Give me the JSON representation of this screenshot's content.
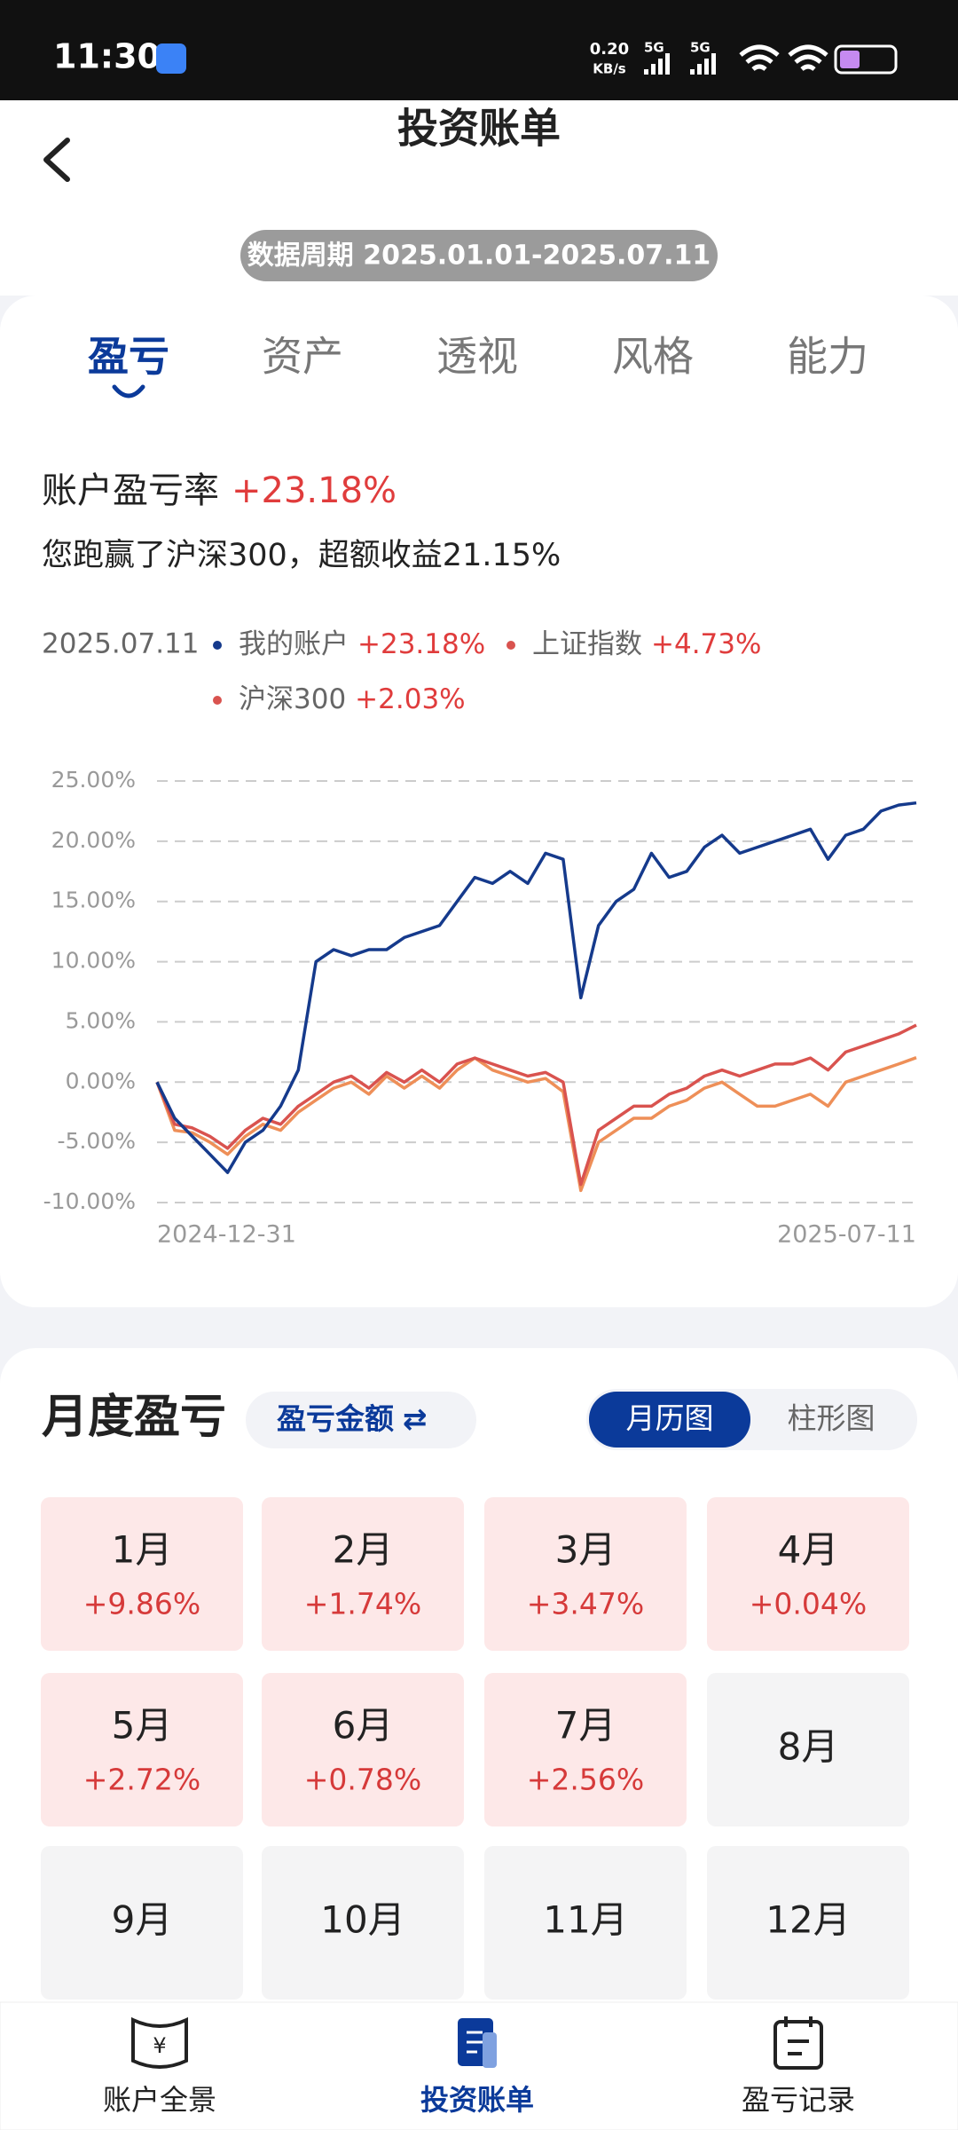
{
  "status_bar": {
    "time": "11:30",
    "net_speed": "0.20",
    "net_unit": "KB/s",
    "signal": [
      "5G",
      "5G"
    ]
  },
  "header": {
    "title": "投资账单",
    "period": "数据周期 2025.01.01-2025.07.11"
  },
  "tabs": {
    "items": [
      "盈亏",
      "资产",
      "透视",
      "风格",
      "能力"
    ],
    "active": 0
  },
  "summary": {
    "label": "账户盈亏率",
    "value": "+23.18%",
    "note": "您跑赢了沪深300，超额收益21.15%"
  },
  "chart_data": {
    "type": "line",
    "legend_date": "2025.07.11",
    "categories": [
      "2024-12-31",
      null,
      null,
      null,
      null,
      null,
      null,
      null,
      null,
      null,
      null,
      null,
      null,
      null,
      null,
      null,
      null,
      null,
      null,
      null,
      null,
      null,
      null,
      null,
      null,
      null,
      null,
      null,
      null,
      null,
      null,
      null,
      null,
      null,
      null,
      null,
      null,
      null,
      null,
      null,
      null,
      null,
      null,
      "2025-07-11"
    ],
    "series": [
      {
        "name": "我的账户",
        "color": "#153a8c",
        "legend_label": "+23.18%",
        "values": [
          0,
          -3,
          -4.5,
          -6,
          -7.5,
          -5,
          -4,
          -2,
          1,
          10,
          11,
          10.5,
          11,
          11,
          12,
          12.5,
          13,
          15,
          17,
          16.5,
          17.5,
          16.5,
          19,
          18.5,
          7,
          13,
          15,
          16,
          19,
          17,
          17.5,
          19.5,
          20.5,
          19,
          19.5,
          20,
          20.5,
          21,
          18.5,
          20.5,
          21,
          22.5,
          23,
          23.18
        ]
      },
      {
        "name": "上证指数",
        "color": "#d9534f",
        "legend_label": "+4.73%",
        "values": [
          0,
          -3.5,
          -3.8,
          -4.5,
          -5.5,
          -4,
          -3,
          -3.5,
          -2,
          -1,
          0,
          0.5,
          -0.5,
          0.8,
          0,
          1,
          0,
          1.5,
          2,
          1.5,
          1,
          0.5,
          0.8,
          0,
          -8.5,
          -4,
          -3,
          -2,
          -2,
          -1,
          -0.5,
          0.5,
          1,
          0.5,
          1,
          1.5,
          1.5,
          2,
          1,
          2.5,
          3,
          3.5,
          4,
          4.73
        ]
      },
      {
        "name": "沪深300",
        "color": "#ee8f58",
        "legend_label": "+2.03%",
        "values": [
          0,
          -4,
          -4.2,
          -5,
          -6,
          -4.5,
          -3.5,
          -4,
          -2.5,
          -1.5,
          -0.5,
          0,
          -1,
          0.5,
          -0.5,
          0.5,
          -0.5,
          1,
          2,
          1,
          0.5,
          0,
          0.3,
          -0.8,
          -9,
          -5,
          -4,
          -3,
          -3,
          -2,
          -1.5,
          -0.5,
          0,
          -1,
          -2,
          -2,
          -1.5,
          -1,
          -2,
          0,
          0.5,
          1,
          1.5,
          2.03
        ]
      }
    ],
    "ylim": [
      -10,
      25
    ],
    "yticks": [
      {
        "value": -10,
        "label": "-10.00%"
      },
      {
        "value": -5,
        "label": "-5.00%"
      },
      {
        "value": 0,
        "label": "0.00%"
      },
      {
        "value": 5,
        "label": "5.00%"
      },
      {
        "value": 10,
        "label": "10.00%"
      },
      {
        "value": 15,
        "label": "15.00%"
      },
      {
        "value": 20,
        "label": "20.00%"
      },
      {
        "value": 25,
        "label": "25.00%"
      }
    ],
    "grid": true
  },
  "monthly": {
    "title": "月度盈亏",
    "metric": "盈亏金额",
    "metric_icon": "⇄",
    "views": [
      "月历图",
      "柱形图"
    ],
    "active_view": 0,
    "months": [
      "1月",
      "2月",
      "3月",
      "4月",
      "5月",
      "6月",
      "7月",
      "8月",
      "9月",
      "10月",
      "11月",
      "12月"
    ],
    "values": [
      9.86,
      1.74,
      3.47,
      0.04,
      2.72,
      0.78,
      2.56,
      null,
      null,
      null,
      null,
      null
    ],
    "value_labels": [
      "+9.86%",
      "+1.74%",
      "+3.47%",
      "+0.04%",
      "+2.72%",
      "+0.78%",
      "+2.56%",
      null,
      null,
      null,
      null,
      null
    ]
  },
  "nav": {
    "items": [
      "账户全景",
      "投资账单",
      "盈亏记录"
    ],
    "active": 1,
    "icon_text": "¥"
  }
}
